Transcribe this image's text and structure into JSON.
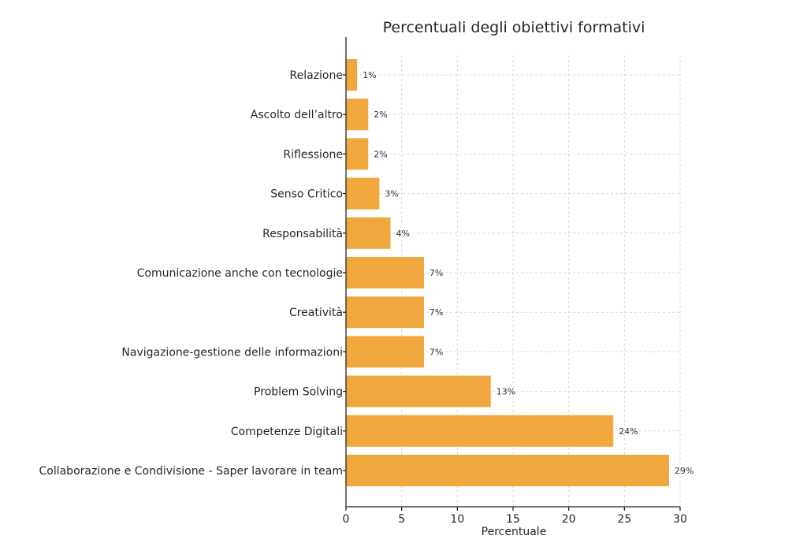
{
  "chart_data": {
    "type": "bar",
    "orientation": "horizontal",
    "title": "Percentuali degli obiettivi formativi",
    "xlabel": "Percentuale",
    "ylabel": "",
    "xlim": [
      0,
      30
    ],
    "xticks": [
      0,
      5,
      10,
      15,
      20,
      25,
      30
    ],
    "grid": true,
    "bar_color": "#f0a73e",
    "categories": [
      "Relazione",
      "Ascolto dell’altro",
      "Riflessione",
      "Senso Critico",
      "Responsabilità",
      "Comunicazione anche con tecnologie",
      "Creatività",
      "Navigazione-gestione delle informazioni",
      "Problem Solving",
      "Competenze Digitali",
      "Collaborazione e Condivisione - Saper lavorare in team"
    ],
    "values": [
      1,
      2,
      2,
      3,
      4,
      7,
      7,
      7,
      13,
      24,
      29
    ],
    "data_labels": [
      "1%",
      "2%",
      "2%",
      "3%",
      "4%",
      "7%",
      "7%",
      "7%",
      "13%",
      "24%",
      "29%"
    ]
  }
}
